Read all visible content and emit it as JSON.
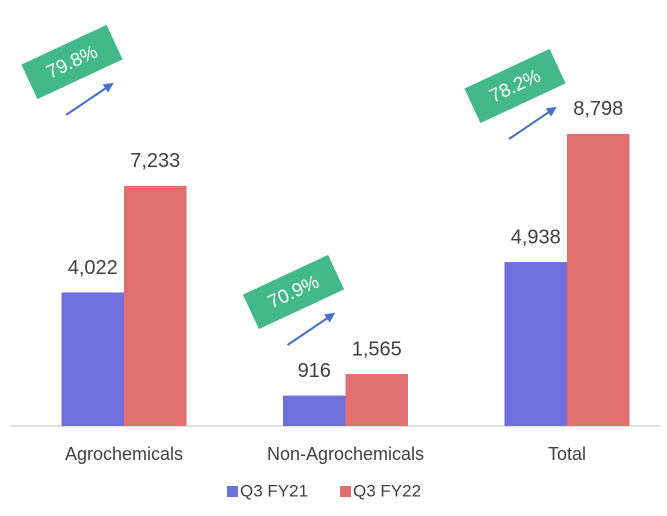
{
  "chart_data": {
    "type": "bar",
    "categories": [
      "Agrochemicals",
      "Non-Agrochemicals",
      "Total"
    ],
    "series": [
      {
        "name": "Q3 FY21",
        "color": "#7070dd",
        "values": [
          4022,
          916,
          4938
        ],
        "value_labels": [
          "4,022",
          "916",
          "4,938"
        ]
      },
      {
        "name": "Q3 FY22",
        "color": "#e07070",
        "values": [
          7233,
          1565,
          8798
        ],
        "value_labels": [
          "7,233",
          "1,565",
          "8,798"
        ]
      }
    ],
    "annotations": [
      "79.8%",
      "70.9%",
      "78.2%"
    ],
    "annotation_color": "#43b98b",
    "ylim": [
      0,
      10000
    ],
    "legend": "bottom"
  }
}
